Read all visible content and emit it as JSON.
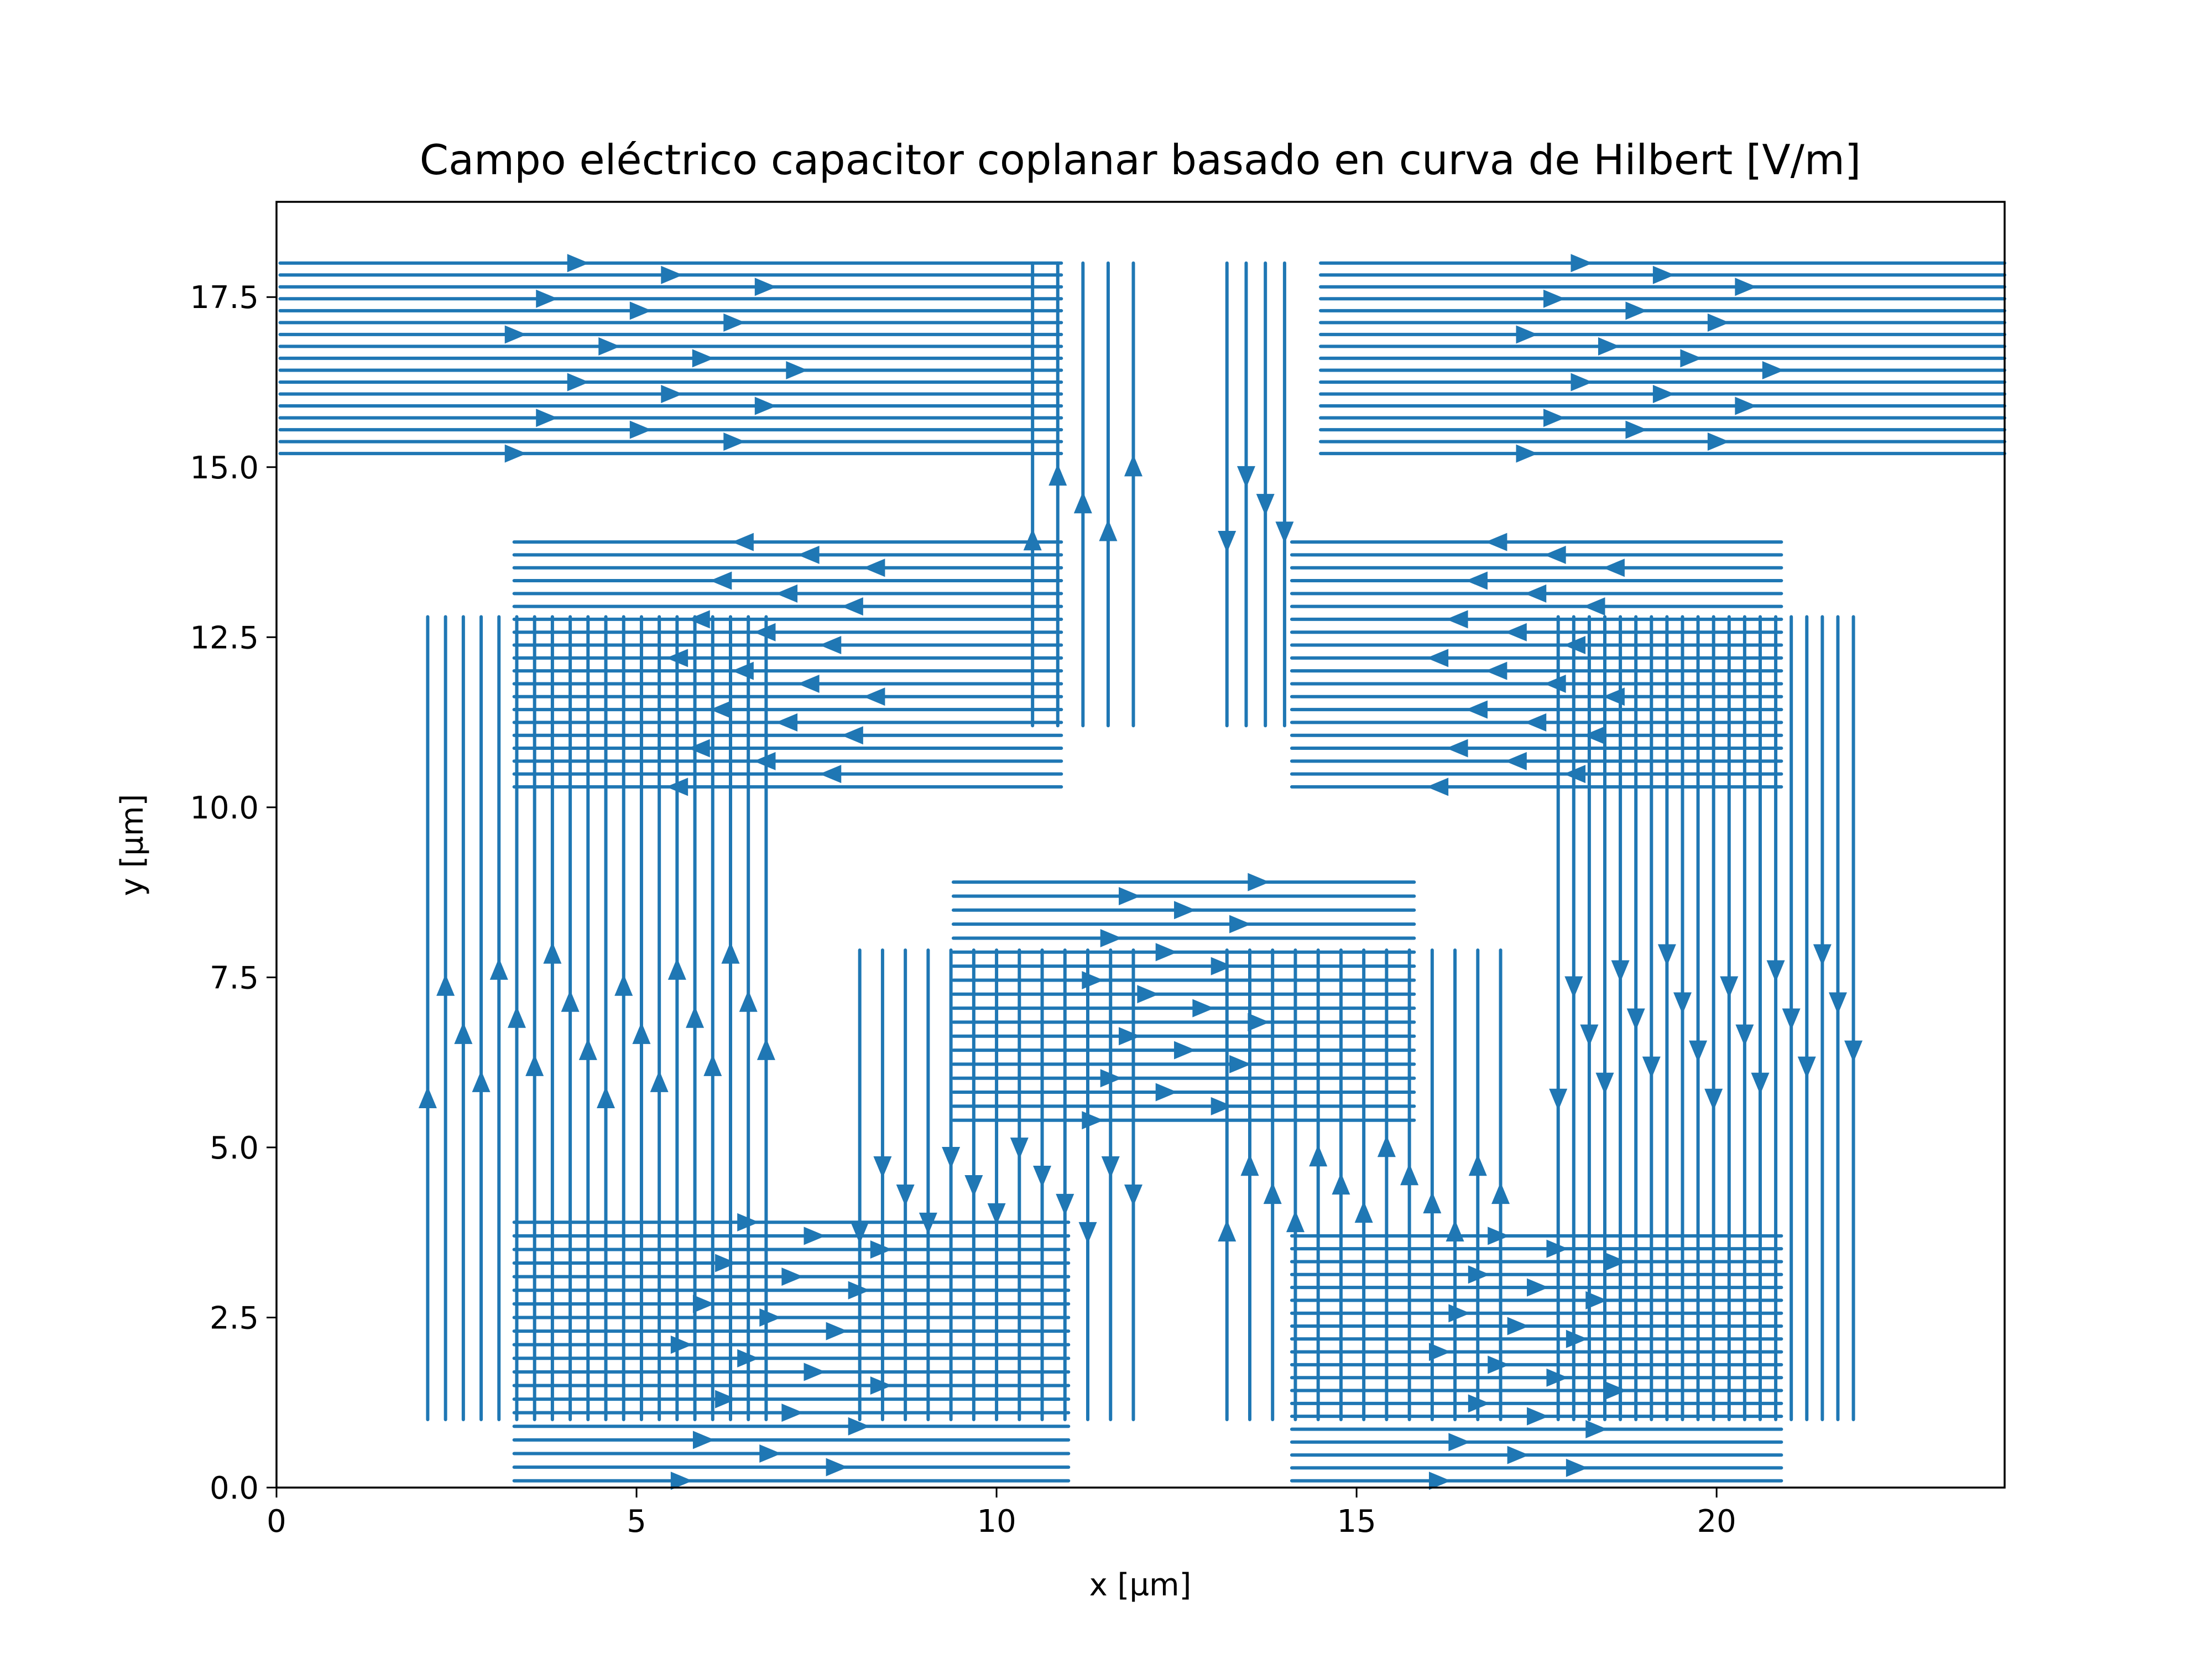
{
  "chart_data": {
    "type": "streamplot",
    "title": "Campo eléctrico capacitor coplanar basado en curva de Hilbert [V/m]",
    "xlabel": "x [µm]",
    "ylabel": "y [µm]",
    "xlim": [
      0,
      24
    ],
    "ylim": [
      0,
      18.9
    ],
    "x_ticks": [
      0,
      5,
      10,
      15,
      20
    ],
    "x_tick_labels": [
      "0",
      "5",
      "10",
      "15",
      "20"
    ],
    "y_ticks": [
      0.0,
      2.5,
      5.0,
      7.5,
      10.0,
      12.5,
      15.0,
      17.5
    ],
    "y_tick_labels": [
      "0.0",
      "2.5",
      "5.0",
      "7.5",
      "10.0",
      "12.5",
      "15.0",
      "17.5"
    ],
    "grid": false,
    "line_color": "#1f77b4",
    "regions": [
      {
        "name": "top-left-horizontal",
        "orientation": "horizontal",
        "x_range": [
          0.05,
          10.9
        ],
        "y_range": [
          15.2,
          18.0
        ],
        "count": 17,
        "direction": "right"
      },
      {
        "name": "top-center-left-vertical",
        "orientation": "vertical",
        "x_range": [
          10.5,
          11.9
        ],
        "y_range": [
          11.2,
          18.0
        ],
        "count": 5,
        "direction": "up"
      },
      {
        "name": "top-center-right-vertical",
        "orientation": "vertical",
        "x_range": [
          13.2,
          14.0
        ],
        "y_range": [
          11.2,
          18.0
        ],
        "count": 4,
        "direction": "down"
      },
      {
        "name": "top-right-horizontal",
        "orientation": "horizontal",
        "x_range": [
          14.5,
          24.0
        ],
        "y_range": [
          15.2,
          18.0
        ],
        "count": 17,
        "direction": "right"
      },
      {
        "name": "upper-left-horizontal",
        "orientation": "horizontal",
        "x_range": [
          3.3,
          10.9
        ],
        "y_range": [
          10.3,
          13.9
        ],
        "count": 20,
        "direction": "left"
      },
      {
        "name": "upper-right-horizontal",
        "orientation": "horizontal",
        "x_range": [
          14.1,
          20.9
        ],
        "y_range": [
          10.3,
          13.9
        ],
        "count": 20,
        "direction": "left"
      },
      {
        "name": "left-vertical",
        "orientation": "vertical",
        "x_range": [
          2.1,
          6.8
        ],
        "y_range": [
          1.0,
          12.8
        ],
        "count": 20,
        "direction": "up"
      },
      {
        "name": "right-vertical",
        "orientation": "vertical",
        "x_range": [
          17.8,
          21.9
        ],
        "y_range": [
          1.0,
          12.8
        ],
        "count": 20,
        "direction": "down"
      },
      {
        "name": "center-horizontal",
        "orientation": "horizontal",
        "x_range": [
          9.4,
          15.8
        ],
        "y_range": [
          5.4,
          8.9
        ],
        "count": 18,
        "direction": "right"
      },
      {
        "name": "center-left-vertical",
        "orientation": "vertical",
        "x_range": [
          8.1,
          11.9
        ],
        "y_range": [
          1.0,
          7.9
        ],
        "count": 13,
        "direction": "down"
      },
      {
        "name": "center-right-vertical",
        "orientation": "vertical",
        "x_range": [
          13.2,
          17.0
        ],
        "y_range": [
          1.0,
          7.9
        ],
        "count": 13,
        "direction": "up"
      },
      {
        "name": "bottom-left-horizontal",
        "orientation": "horizontal",
        "x_range": [
          3.3,
          11.0
        ],
        "y_range": [
          0.1,
          3.9
        ],
        "count": 20,
        "direction": "right"
      },
      {
        "name": "bottom-right-horizontal",
        "orientation": "horizontal",
        "x_range": [
          14.1,
          20.9
        ],
        "y_range": [
          0.1,
          3.7
        ],
        "count": 20,
        "direction": "right"
      }
    ]
  }
}
